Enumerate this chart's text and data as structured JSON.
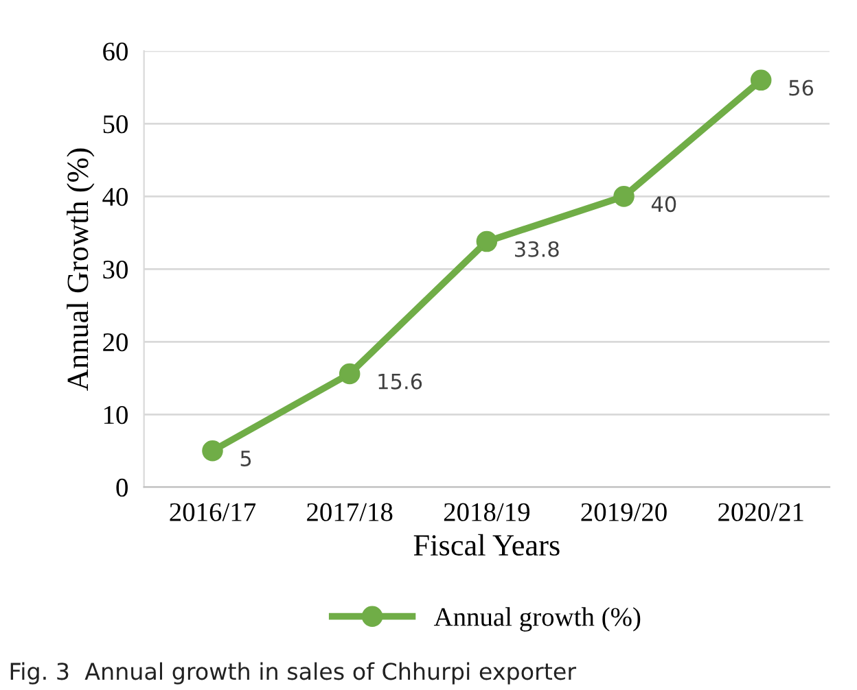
{
  "chart_data": {
    "type": "line",
    "xlabel": "Fiscal Years",
    "ylabel": "Annual Growth (%)",
    "categories": [
      "2016/17",
      "2017/18",
      "2018/19",
      "2019/20",
      "2020/21"
    ],
    "series": [
      {
        "name": "Annual growth (%)",
        "color": "#70ad47",
        "values": [
          5,
          15.6,
          33.8,
          40,
          56
        ]
      }
    ],
    "ylim": [
      0,
      60
    ],
    "yticks": [
      0,
      10,
      20,
      30,
      40,
      50,
      60
    ],
    "grid": "y",
    "legend": "bottom",
    "marker": "circle",
    "line_style": "solid",
    "data_labels": true,
    "annotations": [
      "Fig. 3  Annual growth in sales of Chhurpi exporter"
    ]
  }
}
